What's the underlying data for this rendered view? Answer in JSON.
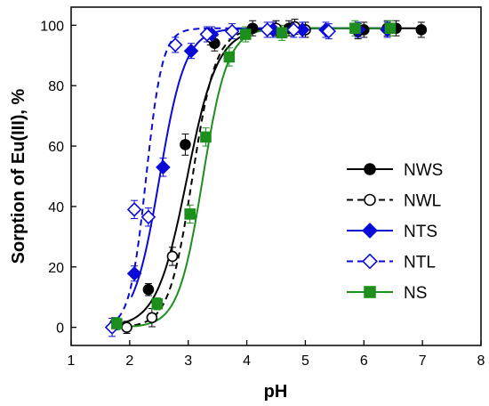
{
  "chart_data": {
    "type": "scatter",
    "title": "",
    "xlabel": "pH",
    "ylabel": "Sorption of Eu(III), %",
    "xlim": [
      1,
      8
    ],
    "ylim": [
      -6,
      106
    ],
    "x_ticks": [
      1,
      2,
      3,
      4,
      5,
      6,
      7,
      8
    ],
    "y_ticks": [
      0,
      20,
      40,
      60,
      80,
      100
    ],
    "grid": false,
    "legend_position": "center-right",
    "series": [
      {
        "name": "NWS",
        "color": "#000000",
        "marker": "circle",
        "filled": true,
        "line": "solid",
        "x": [
          1.75,
          2.32,
          2.95,
          3.45,
          4.1,
          4.72,
          5.0,
          6.0,
          6.55,
          6.98
        ],
        "y": [
          1.2,
          12.5,
          60.5,
          94.0,
          99.0,
          99.0,
          98.5,
          98.5,
          99.0,
          98.5
        ],
        "err": [
          2.0,
          2.0,
          3.5,
          2.5,
          2.5,
          2.5,
          2.5,
          2.5,
          2.5,
          2.5
        ],
        "fit_midpoint": 2.98,
        "fit_width": 0.26
      },
      {
        "name": "NWL",
        "color": "#000000",
        "marker": "circle",
        "filled": false,
        "line": "dashed",
        "x": [
          1.95,
          2.38,
          2.73,
          3.38,
          4.5,
          4.82,
          5.0,
          5.9,
          6.4
        ],
        "y": [
          0.0,
          3.2,
          23.5,
          96.0,
          99.0,
          99.5,
          98.5,
          98.0,
          99.0
        ],
        "err": [
          2.0,
          3.0,
          3.0,
          2.5,
          2.5,
          2.5,
          2.5,
          2.5,
          2.5
        ],
        "fit_midpoint": 3.07,
        "fit_width": 0.2
      },
      {
        "name": "NTS",
        "color": "#0a0ad6",
        "marker": "diamond",
        "filled": true,
        "line": "solid",
        "x": [
          2.08,
          2.57,
          3.05,
          3.4,
          4.45,
          4.95,
          5.35,
          5.9,
          6.4
        ],
        "y": [
          17.8,
          53.0,
          91.5,
          97.0,
          98.5,
          98.5,
          98.5,
          98.5,
          98.5
        ],
        "err": [
          2.5,
          3.0,
          2.5,
          2.5,
          2.5,
          2.5,
          2.5,
          2.5,
          2.5
        ],
        "fit_midpoint": 2.51,
        "fit_width": 0.22
      },
      {
        "name": "NTL",
        "color": "#0a0ad6",
        "marker": "diamond",
        "filled": false,
        "line": "dashed",
        "x": [
          1.7,
          2.08,
          2.32,
          2.78,
          3.32,
          3.75,
          4.35,
          4.8,
          5.4
        ],
        "y": [
          0.0,
          39.0,
          36.5,
          93.5,
          97.0,
          98.0,
          98.5,
          98.5,
          98.0
        ],
        "err": [
          3.0,
          3.0,
          3.0,
          2.5,
          2.5,
          2.5,
          2.5,
          2.5,
          2.5
        ],
        "fit_midpoint": 2.28,
        "fit_width": 0.14
      },
      {
        "name": "NS",
        "color": "#1c8f1c",
        "marker": "square",
        "filled": true,
        "line": "solid",
        "x": [
          1.78,
          2.47,
          3.03,
          3.3,
          3.7,
          3.98,
          4.6,
          5.85,
          6.45
        ],
        "y": [
          1.2,
          7.8,
          37.5,
          63.0,
          89.5,
          97.0,
          97.5,
          99.0,
          99.0
        ],
        "err": [
          2.0,
          2.0,
          3.0,
          3.0,
          3.0,
          2.5,
          2.5,
          2.5,
          2.5
        ],
        "fit_midpoint": 3.25,
        "fit_width": 0.21
      }
    ]
  }
}
